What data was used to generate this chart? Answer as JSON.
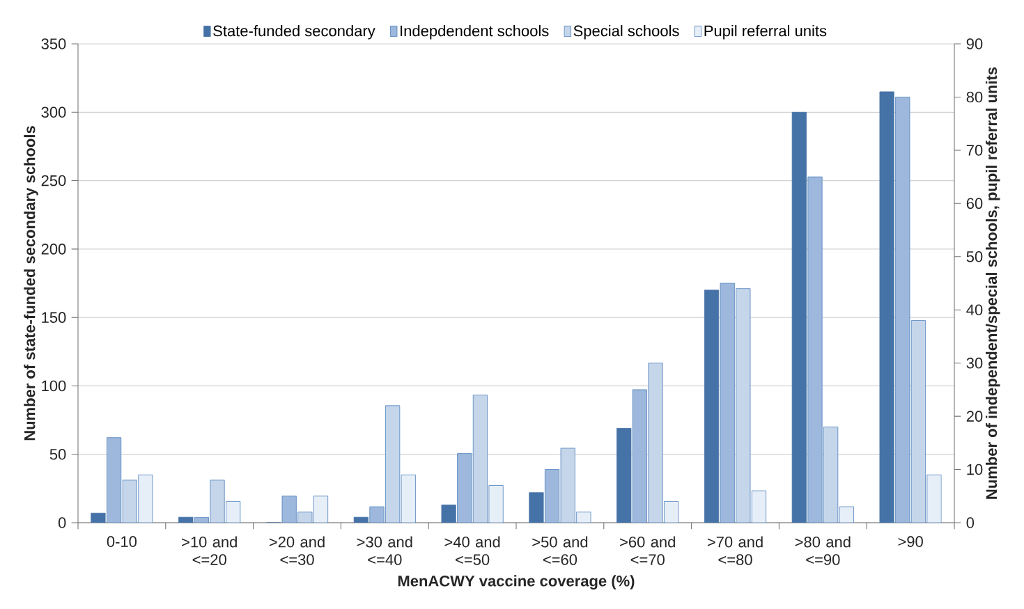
{
  "chart_data": {
    "type": "bar",
    "xlabel": "MenACWY vaccine coverage (%)",
    "ylabel": "Number of state-funded secondary schools",
    "y2label": "Number of independent/special schools, pupil referral units",
    "categories": [
      "0-10",
      ">10 and <=20",
      ">20 and <=30",
      ">30 and <=40",
      ">40 and <=50",
      ">50 and <=60",
      ">60 and <=70",
      ">70 and <=80",
      ">80 and <=90",
      ">90"
    ],
    "series": [
      {
        "name": "State-funded secondary",
        "color": "#4572a7",
        "values": [
          7,
          4,
          0,
          4,
          13,
          22,
          69,
          170,
          300,
          315
        ]
      },
      {
        "name": "Indepdendent schools",
        "color": "#9db8dc",
        "axis": "y2",
        "values": [
          16,
          1,
          5,
          3,
          13,
          10,
          25,
          45,
          65,
          80
        ]
      },
      {
        "name": "Special schools",
        "color": "#c5d5ea",
        "axis": "y2",
        "values": [
          8,
          8,
          2,
          22,
          24,
          14,
          30,
          44,
          18,
          38
        ]
      },
      {
        "name": "Pupil referral units",
        "color": "#e6eef8",
        "axis": "y2",
        "values": [
          9,
          4,
          5,
          9,
          7,
          2,
          4,
          6,
          3,
          9
        ]
      }
    ],
    "ylim": [
      0,
      350
    ],
    "yticks": [
      0,
      50,
      100,
      150,
      200,
      250,
      300,
      350
    ],
    "y2lim": [
      0,
      90
    ],
    "y2ticks": [
      0,
      10,
      20,
      30,
      40,
      50,
      60,
      70,
      80,
      90
    ],
    "grid": "y",
    "legend": "top"
  }
}
